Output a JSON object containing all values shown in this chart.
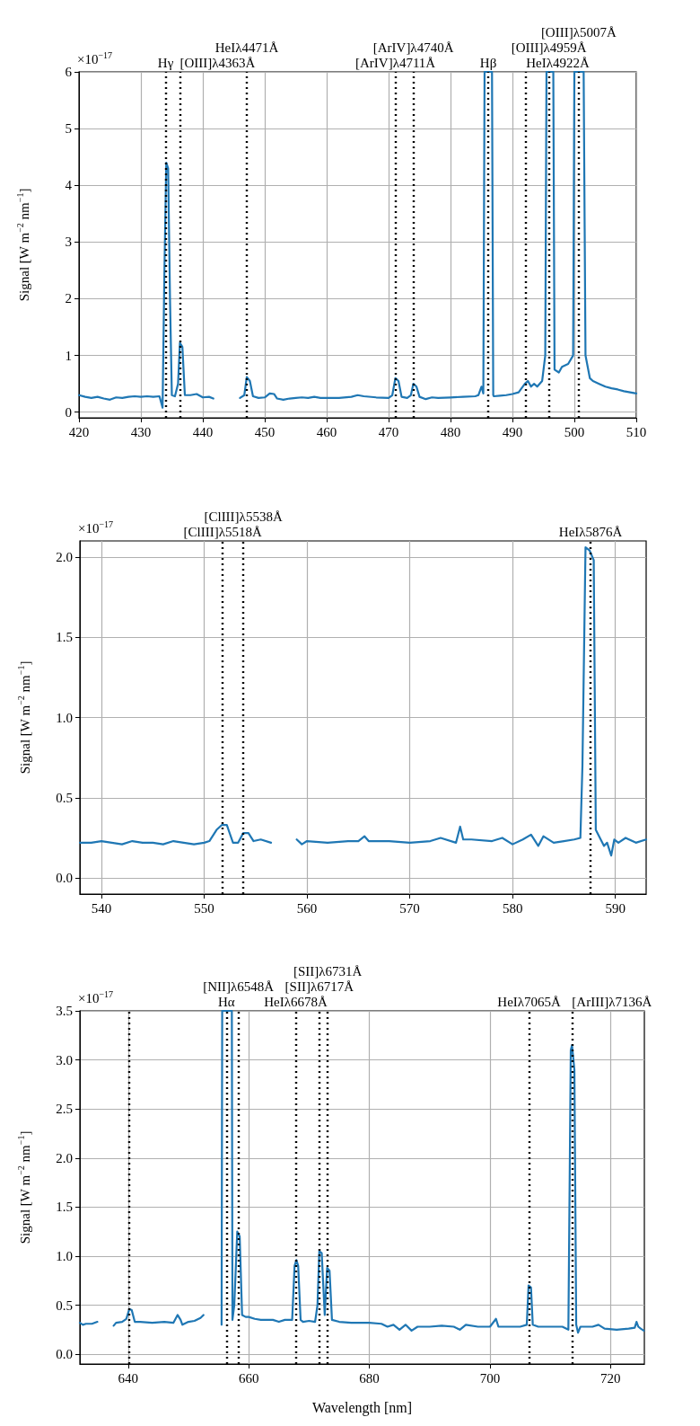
{
  "chart_data": [
    {
      "type": "line",
      "ylabel": "Signal [W m$^{−2}$ nm$^{−1}$]",
      "annotations": [
        "×10$^{−17}$"
      ],
      "xlim": [
        420,
        510
      ],
      "xticks": [
        420,
        430,
        440,
        450,
        460,
        470,
        480,
        490,
        500,
        510
      ],
      "ylim": [
        -0.1,
        6
      ],
      "yticks": [
        0,
        1,
        2,
        3,
        4,
        5,
        6
      ],
      "grid": true,
      "marker": "none",
      "line_style": "solid",
      "series": [
        {
          "color": "#1f77b4",
          "x": [
            420,
            421,
            422,
            423,
            424,
            425,
            426,
            427,
            428,
            429,
            430,
            431,
            432,
            433,
            433.5,
            433.8,
            434.1,
            434.4,
            434.7,
            435,
            435.5,
            436,
            436.3,
            436.7,
            437.1,
            438,
            439,
            440,
            441,
            441.7,
            444,
            446,
            446.7,
            447.1,
            447.6,
            448.1,
            449,
            450,
            450.8,
            451.5,
            452,
            453,
            454,
            455,
            456,
            457,
            458,
            459,
            460,
            462,
            464,
            465,
            466,
            468,
            470,
            470.6,
            471.1,
            471.6,
            472.1,
            473,
            473.6,
            474,
            474.5,
            475,
            476,
            477,
            478,
            480,
            482,
            484,
            484.5,
            485,
            485.3,
            485.5,
            486.7,
            486.9,
            487,
            488,
            489,
            490,
            491,
            492,
            492.5,
            493,
            493.5,
            494,
            494.8,
            495.3,
            495.5,
            496.6,
            496.8,
            497.5,
            498,
            499,
            499.8,
            500,
            501.5,
            501.8,
            502.5,
            503,
            504,
            505,
            506,
            507,
            508,
            509,
            510
          ],
          "values": [
            0.3,
            0.27,
            0.25,
            0.27,
            0.24,
            0.22,
            0.26,
            0.25,
            0.27,
            0.28,
            0.27,
            0.28,
            0.27,
            0.28,
            0.08,
            2.5,
            4.4,
            4.3,
            2.0,
            0.3,
            0.28,
            0.5,
            1.22,
            1.15,
            0.3,
            0.3,
            0.32,
            0.26,
            0.27,
            0.24,
            null,
            0.25,
            0.3,
            0.62,
            0.55,
            0.28,
            0.25,
            0.26,
            0.33,
            0.32,
            0.24,
            0.22,
            0.24,
            0.25,
            0.26,
            0.25,
            0.27,
            0.25,
            0.25,
            0.25,
            0.27,
            0.3,
            0.28,
            0.26,
            0.25,
            0.3,
            0.6,
            0.55,
            0.27,
            0.25,
            0.3,
            0.5,
            0.45,
            0.27,
            0.23,
            0.26,
            0.25,
            0.26,
            0.27,
            0.28,
            0.3,
            0.45,
            0.33,
            6,
            6,
            0.3,
            0.28,
            0.29,
            0.3,
            0.32,
            0.35,
            0.5,
            0.55,
            0.45,
            0.5,
            0.45,
            0.55,
            1.0,
            6,
            6,
            0.75,
            0.7,
            0.8,
            0.85,
            1.0,
            6,
            6,
            1.0,
            0.6,
            0.55,
            0.5,
            0.45,
            0.42,
            0.4,
            0.37,
            0.35,
            0.33
          ]
        }
      ],
      "ref_lines": [
        {
          "axis": "x",
          "value": 434.0,
          "label": "Hγ",
          "color": "#000000",
          "line_style": "dotted"
        },
        {
          "axis": "x",
          "value": 436.3,
          "label": "[OIII]λ4363Å",
          "color": "#000000",
          "line_style": "dotted"
        },
        {
          "axis": "x",
          "value": 447.1,
          "label": "HeIλ4471Å",
          "color": "#000000",
          "line_style": "dotted"
        },
        {
          "axis": "x",
          "value": 471.1,
          "label": "[ArIV]λ4711Å",
          "color": "#000000",
          "line_style": "dotted"
        },
        {
          "axis": "x",
          "value": 474.0,
          "label": "[ArIV]λ4740Å",
          "color": "#000000",
          "line_style": "dotted"
        },
        {
          "axis": "x",
          "value": 486.1,
          "label": "Hβ",
          "color": "#000000",
          "line_style": "dotted"
        },
        {
          "axis": "x",
          "value": 492.2,
          "label": "HeIλ4922Å",
          "color": "#000000",
          "line_style": "dotted"
        },
        {
          "axis": "x",
          "value": 495.9,
          "label": "[OIII]λ4959Å",
          "color": "#000000",
          "line_style": "dotted"
        },
        {
          "axis": "x",
          "value": 500.7,
          "label": "[OIII]λ5007Å",
          "color": "#000000",
          "line_style": "dotted"
        }
      ]
    },
    {
      "type": "line",
      "ylabel": "Signal [W m$^{−2}$ nm$^{−1}$]",
      "annotations": [
        "×10$^{−17}$"
      ],
      "xlim": [
        537.9,
        593
      ],
      "xticks": [
        540,
        550,
        560,
        570,
        580,
        590
      ],
      "ylim": [
        -0.1,
        2.1
      ],
      "yticks": [
        {
          "value": 0,
          "label": "0.0"
        },
        0.5,
        {
          "value": 1,
          "label": "1.0"
        },
        1.5,
        {
          "value": 2,
          "label": "2.0"
        }
      ],
      "grid": true,
      "marker": "none",
      "line_style": "solid",
      "series": [
        {
          "color": "#1f77b4",
          "x": [
            537.9,
            539,
            540,
            541,
            542,
            543,
            544,
            545,
            546,
            547,
            548,
            549,
            550,
            550.5,
            551.2,
            551.7,
            552.2,
            552.8,
            553.3,
            553.8,
            554.3,
            554.8,
            555.5,
            556.5,
            557.8,
            559,
            559.5,
            560,
            562,
            564,
            565,
            565.6,
            566,
            568,
            570,
            572,
            573,
            574.5,
            574.9,
            575.2,
            576,
            578,
            579,
            580,
            581,
            581.8,
            582.5,
            583,
            584,
            585,
            586,
            586.6,
            586.8,
            587.1,
            587.5,
            587.9,
            588.1,
            588.5,
            588.9,
            589.2,
            589.6,
            589.9,
            590.3,
            591,
            592,
            593
          ],
          "values": [
            0.22,
            0.22,
            0.23,
            0.22,
            0.21,
            0.23,
            0.22,
            0.22,
            0.21,
            0.23,
            0.22,
            0.21,
            0.22,
            0.23,
            0.3,
            0.33,
            0.33,
            0.22,
            0.22,
            0.28,
            0.28,
            0.23,
            0.24,
            0.22,
            null,
            0.24,
            0.21,
            0.23,
            0.22,
            0.23,
            0.23,
            0.26,
            0.23,
            0.23,
            0.22,
            0.23,
            0.25,
            0.22,
            0.32,
            0.24,
            0.24,
            0.23,
            0.25,
            0.21,
            0.24,
            0.27,
            0.2,
            0.26,
            0.22,
            0.23,
            0.24,
            0.25,
            0.7,
            2.06,
            2.04,
            1.98,
            0.3,
            0.25,
            0.2,
            0.22,
            0.14,
            0.24,
            0.22,
            0.25,
            0.22,
            0.24
          ]
        }
      ],
      "ref_lines": [
        {
          "axis": "x",
          "value": 551.8,
          "label": "[ClIII]λ5518Å",
          "color": "#000000",
          "line_style": "dotted"
        },
        {
          "axis": "x",
          "value": 553.8,
          "label": "[ClIII]λ5538Å",
          "color": "#000000",
          "line_style": "dotted"
        },
        {
          "axis": "x",
          "value": 587.6,
          "label": "HeIλ5876Å",
          "color": "#000000",
          "line_style": "dotted"
        }
      ]
    },
    {
      "type": "line",
      "xlabel": "Wavelength [nm]",
      "ylabel": "Signal [W m$^{−2}$ nm$^{−1}$]",
      "annotations": [
        "×10$^{−17}$"
      ],
      "xlim": [
        632,
        725.6
      ],
      "xticks": [
        640,
        660,
        680,
        700,
        720
      ],
      "ylim": [
        -0.1,
        3.5
      ],
      "yticks": [
        {
          "value": 0,
          "label": "0.0"
        },
        0.5,
        {
          "value": 1,
          "label": "1.0"
        },
        1.5,
        {
          "value": 2,
          "label": "2.0"
        },
        2.5,
        {
          "value": 3,
          "label": "3.0"
        },
        3.5
      ],
      "grid": true,
      "marker": "none",
      "line_style": "solid",
      "series": [
        {
          "color": "#1f77b4",
          "x": [
            632,
            632.5,
            633,
            634,
            634.9,
            636,
            637.6,
            638,
            639,
            639.7,
            640.2,
            640.6,
            641.1,
            642,
            644,
            646,
            647.5,
            648.2,
            648.7,
            649,
            650,
            651,
            652,
            652.5,
            654,
            655.5,
            655.6,
            657.2,
            657.3,
            657.6,
            658.1,
            658.5,
            658.9,
            659.5,
            660,
            661,
            662,
            664,
            665,
            666,
            667.2,
            667.6,
            667.9,
            668.2,
            668.6,
            669,
            670,
            671,
            671.4,
            671.7,
            672.1,
            672.6,
            673,
            673.4,
            673.8,
            675,
            677,
            679,
            680,
            682,
            683,
            684,
            685,
            686,
            687,
            688,
            690,
            692,
            694,
            695,
            696,
            698,
            700,
            701,
            701.4,
            703,
            705,
            706.1,
            706.4,
            706.8,
            707.1,
            708,
            710,
            712,
            713,
            713.4,
            713.6,
            714,
            714.3,
            714.6,
            715,
            717,
            718,
            719,
            721,
            723,
            724,
            724.3,
            724.6,
            725,
            725.5
          ],
          "values": [
            0.32,
            0.3,
            0.31,
            0.31,
            0.33,
            null,
            0.29,
            0.32,
            0.33,
            0.36,
            0.46,
            0.45,
            0.33,
            0.33,
            0.32,
            0.33,
            0.32,
            0.4,
            0.35,
            0.3,
            0.33,
            0.34,
            0.37,
            0.4,
            null,
            0.3,
            3.5,
            3.5,
            0.35,
            0.5,
            1.25,
            1.2,
            0.4,
            0.38,
            0.38,
            0.36,
            0.35,
            0.35,
            0.33,
            0.35,
            0.35,
            0.9,
            0.96,
            0.9,
            0.35,
            0.33,
            0.34,
            0.33,
            0.5,
            1.05,
            1.03,
            0.4,
            0.88,
            0.85,
            0.35,
            0.33,
            0.32,
            0.32,
            0.32,
            0.31,
            0.28,
            0.3,
            0.25,
            0.3,
            0.24,
            0.28,
            0.28,
            0.29,
            0.28,
            0.25,
            0.3,
            0.28,
            0.28,
            0.36,
            0.28,
            0.28,
            0.28,
            0.3,
            0.7,
            0.68,
            0.3,
            0.28,
            0.28,
            0.28,
            0.25,
            3.1,
            3.15,
            2.9,
            0.3,
            0.22,
            0.28,
            0.28,
            0.3,
            0.26,
            0.25,
            0.26,
            0.27,
            0.33,
            0.28,
            0.26,
            0.24
          ]
        }
      ],
      "ref_lines": [
        {
          "axis": "x",
          "value": 640.1,
          "color": "#000000",
          "line_style": "dotted"
        },
        {
          "axis": "x",
          "value": 656.3,
          "label": "Hα",
          "color": "#000000",
          "line_style": "dotted"
        },
        {
          "axis": "x",
          "value": 658.3,
          "label": "[NII]λ6548Å",
          "color": "#000000",
          "line_style": "dotted"
        },
        {
          "axis": "x",
          "value": 667.8,
          "label": "HeIλ6678Å",
          "color": "#000000",
          "line_style": "dotted"
        },
        {
          "axis": "x",
          "value": 671.7,
          "label": "[SII]λ6717Å",
          "color": "#000000",
          "line_style": "dotted"
        },
        {
          "axis": "x",
          "value": 673.1,
          "label": "[SII]λ6731Å",
          "color": "#000000",
          "line_style": "dotted"
        },
        {
          "axis": "x",
          "value": 706.5,
          "label": "HeIλ7065Å",
          "color": "#000000",
          "line_style": "dotted"
        },
        {
          "axis": "x",
          "value": 713.6,
          "label": "[ArIII]λ7136Å",
          "color": "#000000",
          "line_style": "dotted"
        }
      ]
    }
  ]
}
